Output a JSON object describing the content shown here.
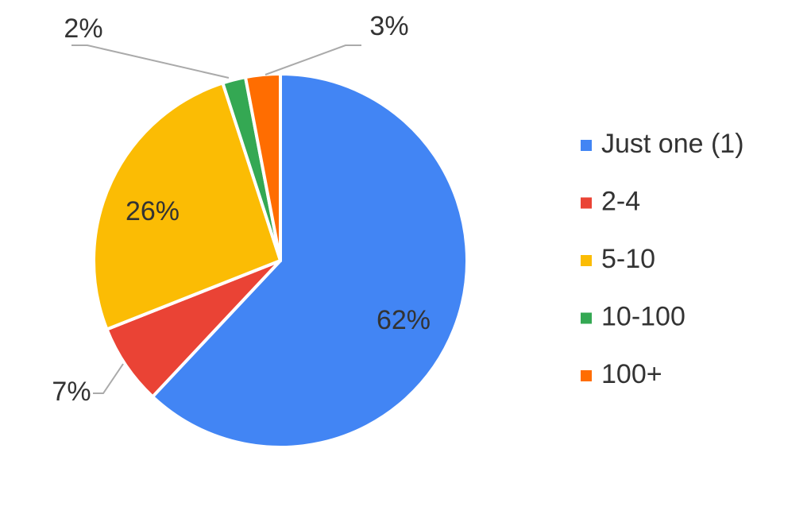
{
  "chart_data": {
    "type": "pie",
    "categories": [
      "Just one (1)",
      "2-4",
      "5-10",
      "10-100",
      "100+"
    ],
    "values": [
      62,
      7,
      26,
      2,
      3
    ],
    "value_labels": [
      "62%",
      "7%",
      "26%",
      "2%",
      "3%"
    ],
    "colors": [
      "#4285f4",
      "#ea4335",
      "#fbbc04",
      "#34a853",
      "#ff6d01"
    ],
    "legend": "right"
  }
}
